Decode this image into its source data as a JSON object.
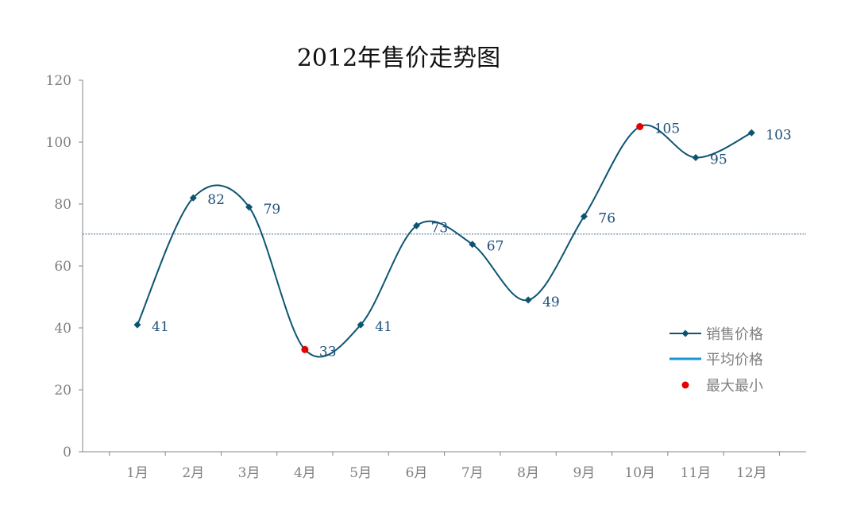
{
  "chart_data": {
    "type": "line",
    "title": "2012年售价走势图",
    "categories": [
      "1月",
      "2月",
      "3月",
      "4月",
      "5月",
      "6月",
      "7月",
      "8月",
      "9月",
      "10月",
      "11月",
      "12月"
    ],
    "series": [
      {
        "name": "销售价格",
        "values": [
          41,
          82,
          79,
          33,
          41,
          73,
          67,
          49,
          76,
          105,
          95,
          103
        ],
        "color": "#0d5472",
        "marker": "diamond",
        "smooth": true
      },
      {
        "name": "平均价格",
        "value": 70.3,
        "color": "#1a94d6",
        "style": "dashed-line"
      },
      {
        "name": "最大最小",
        "points": [
          {
            "category": "4月",
            "value": 33
          },
          {
            "category": "10月",
            "value": 105
          }
        ],
        "color": "#e60000",
        "marker": "circle"
      }
    ],
    "data_labels": [
      "41",
      "82",
      "79",
      "33",
      "41",
      "73",
      "67",
      "49",
      "76",
      "105",
      "95",
      "103"
    ],
    "ylim": [
      0,
      120
    ],
    "yticks": [
      0,
      20,
      40,
      60,
      80,
      100,
      120
    ],
    "xlabel": "",
    "ylabel": "",
    "grid": false,
    "legend_position": "right"
  }
}
